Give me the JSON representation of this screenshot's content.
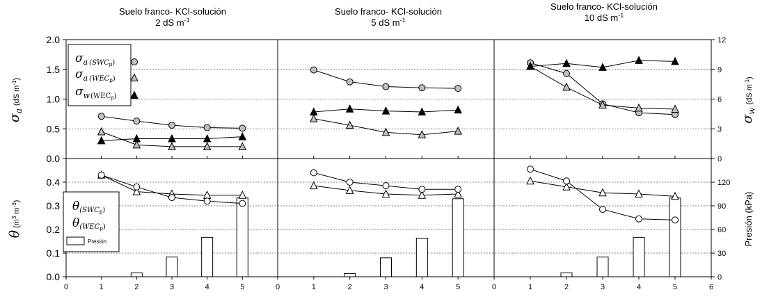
{
  "panel_titles": [
    {
      "line1": "Suelo franco- KCl-solución",
      "line2": "2 dS m",
      "sup": "-1"
    },
    {
      "line1": "Suelo franco- KCl-solución",
      "line2": "5 dS m",
      "sup": "-1"
    },
    {
      "line1": "Suelo franco- KCl-solución",
      "line2": "10 dS m",
      "sup": "-1"
    }
  ],
  "axes": {
    "top_left_symbol": "σ",
    "top_left_sub": "a",
    "top_left_unit": "(dS m",
    "top_left_unit_sup": "-1",
    "top_left_unit_end": ")",
    "top_right_symbol": "σ",
    "top_right_sub": "w",
    "top_right_unit": "(dS m",
    "top_right_unit_sup": "-1",
    "top_right_unit_end": ")",
    "bottom_left_symbol": "θ",
    "bottom_left_unit": "(m",
    "bottom_left_unit_sup1": "3",
    "bottom_left_unit_mid": " m",
    "bottom_left_unit_sup2": "-3",
    "bottom_left_unit_end": ")",
    "bottom_right_label": "Presión (kPa)"
  },
  "legend_top": [
    {
      "symbol": "σ",
      "sub": "a",
      "paren": "(SWC",
      "pidx": "p",
      "close": ")",
      "marker": "circle-gray"
    },
    {
      "symbol": "σ",
      "sub": "a",
      "paren": "(WEC",
      "pidx": "p",
      "close": ")",
      "marker": "triangle-gray"
    },
    {
      "symbol": "σ",
      "sub": "w",
      "paren": "(WEC",
      "pidx": "p",
      "close": ")",
      "marker": "triangle-black"
    }
  ],
  "legend_bottom": [
    {
      "symbol": "θ",
      "paren": "(SWC",
      "pidx": "p",
      "close": ")",
      "marker": "circle-white"
    },
    {
      "symbol": "θ",
      "paren": "(WEC",
      "pidx": "p",
      "close": ")",
      "marker": "triangle-white"
    },
    {
      "label": "Presión",
      "marker": "bar-white"
    }
  ],
  "colors": {
    "gray_fill": "#c0c0c0",
    "black": "#000000",
    "white": "#ffffff",
    "grid": "#555555"
  },
  "chart_data": {
    "type": "line",
    "x": [
      1,
      2,
      3,
      4,
      5
    ],
    "x_ticks": [
      "0",
      "1",
      "2",
      "3",
      "4",
      "5",
      "6"
    ],
    "xlim": [
      0,
      6
    ],
    "grid": "dotted horizontal",
    "top": {
      "ylim_left": [
        0,
        2.0
      ],
      "ticks_left": [
        "0.0",
        "0.5",
        "1.0",
        "1.5",
        "2.0"
      ],
      "ylim_right": [
        0,
        12
      ],
      "ticks_right": [
        "0",
        "3",
        "6",
        "9",
        "12"
      ],
      "panels": [
        {
          "sigma_a_SWCp": [
            0.71,
            0.63,
            0.56,
            0.52,
            0.51
          ],
          "sigma_a_WECp": [
            0.45,
            0.23,
            0.2,
            0.2,
            0.2
          ],
          "sigma_w_WECp": [
            1.8,
            2.0,
            2.0,
            2.0,
            2.2
          ]
        },
        {
          "sigma_a_SWCp": [
            1.49,
            1.29,
            1.21,
            1.19,
            1.18
          ],
          "sigma_a_WECp": [
            0.67,
            0.56,
            0.44,
            0.4,
            0.46
          ],
          "sigma_w_WECp": [
            4.7,
            5.0,
            4.8,
            4.7,
            4.9
          ]
        },
        {
          "sigma_a_SWCp": [
            1.61,
            1.43,
            0.92,
            0.77,
            0.74
          ],
          "sigma_a_WECp": [
            1.55,
            1.2,
            0.9,
            0.85,
            0.83
          ],
          "sigma_w_WECp": [
            9.3,
            9.6,
            9.2,
            9.9,
            9.8
          ]
        }
      ]
    },
    "bottom": {
      "ylim_left": [
        0,
        0.5
      ],
      "ticks_left": [
        "0.0",
        "0.1",
        "0.2",
        "0.3",
        "0.4"
      ],
      "ylim_right": [
        0,
        150
      ],
      "ticks_right": [
        "0",
        "30",
        "60",
        "90",
        "120"
      ],
      "panels": [
        {
          "theta_SWCp": [
            0.43,
            0.38,
            0.335,
            0.32,
            0.31
          ],
          "theta_WECp": [
            0.43,
            0.36,
            0.35,
            0.345,
            0.345
          ],
          "presion_kPa": [
            0,
            5,
            25,
            50,
            100
          ]
        },
        {
          "theta_SWCp": [
            0.44,
            0.4,
            0.385,
            0.37,
            0.37
          ],
          "theta_WECp": [
            0.385,
            0.365,
            0.35,
            0.345,
            0.35
          ],
          "presion_kPa": [
            0,
            4,
            24,
            49,
            99
          ]
        },
        {
          "theta_SWCp": [
            0.455,
            0.405,
            0.285,
            0.245,
            0.24
          ],
          "theta_WECp": [
            0.405,
            0.38,
            0.355,
            0.35,
            0.34
          ],
          "presion_kPa": [
            0,
            5,
            25,
            50,
            100
          ]
        }
      ]
    }
  }
}
